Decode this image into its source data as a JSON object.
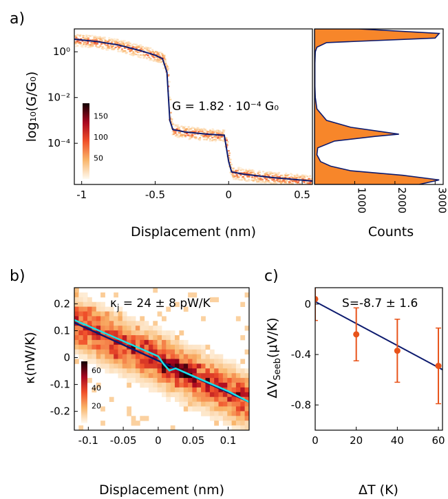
{
  "colors": {
    "navy": "#0c1a6e",
    "cyan": "#19e3e8",
    "orange": "#f7862a",
    "errorbar": "#e8531a",
    "heat_low": "#fde9c8",
    "heat_high": "#1a0006"
  },
  "chart_data": [
    {
      "id": "a",
      "panel_label": "a)",
      "type": "heatmap",
      "xlabel": "Displacement (nm)",
      "ylabel": "log₁₀(G/G₀)",
      "xlim": [
        -1.05,
        0.57
      ],
      "ylim_log10": [
        -5.8,
        1.0
      ],
      "log_y": true,
      "x_ticks": [
        -1,
        -0.5,
        0,
        0.5
      ],
      "x_tick_labels": [
        "-1",
        "-0.5",
        "0",
        "0.5"
      ],
      "y_ticks_log10": [
        0,
        -2,
        -4
      ],
      "y_tick_labels": [
        "10⁰",
        "10⁻²",
        "10⁻⁴"
      ],
      "annotation": "G = 1.82 · 10⁻⁴ G₀",
      "colorbar": {
        "ticks": [
          150,
          100,
          50
        ],
        "range": [
          0,
          180
        ]
      },
      "mean_trace": {
        "x": [
          -1.05,
          -0.9,
          -0.75,
          -0.6,
          -0.5,
          -0.45,
          -0.42,
          -0.4,
          -0.38,
          -0.3,
          -0.15,
          -0.03,
          0.0,
          0.02,
          0.1,
          0.3,
          0.57
        ],
        "log10G": [
          0.55,
          0.45,
          0.3,
          0.05,
          -0.15,
          -0.3,
          -0.9,
          -3.0,
          -3.4,
          -3.5,
          -3.6,
          -3.65,
          -4.8,
          -5.25,
          -5.35,
          -5.5,
          -5.65
        ]
      },
      "plateau_value": 0.000182,
      "grid": false
    },
    {
      "id": "a-hist",
      "type": "bar",
      "orientation": "horizontal",
      "xlabel": "Counts",
      "x_ticks": [
        1000,
        2000,
        3000
      ],
      "x_tick_labels": [
        "1000",
        "2000",
        "3000"
      ],
      "xlim": [
        0,
        3200
      ],
      "ylim_log10": [
        -5.8,
        1.0
      ],
      "histogram": {
        "log10G": [
          1.0,
          0.8,
          0.6,
          0.4,
          0.2,
          0.0,
          -0.5,
          -1.0,
          -1.5,
          -2.0,
          -2.5,
          -3.0,
          -3.3,
          -3.5,
          -3.6,
          -3.7,
          -3.9,
          -4.2,
          -4.5,
          -4.8,
          -5.0,
          -5.2,
          -5.4,
          -5.6,
          -5.8
        ],
        "counts": [
          1100,
          3100,
          3000,
          300,
          60,
          20,
          10,
          10,
          10,
          20,
          60,
          300,
          900,
          1700,
          2100,
          1500,
          500,
          80,
          60,
          150,
          400,
          900,
          2200,
          3100,
          2600
        ]
      },
      "grid": false
    },
    {
      "id": "b",
      "panel_label": "b)",
      "type": "heatmap",
      "xlabel": "Displacement (nm)",
      "ylabel": "κ(nW/K)",
      "xlim": [
        -0.12,
        0.13
      ],
      "ylim": [
        -0.27,
        0.26
      ],
      "x_ticks": [
        -0.1,
        -0.05,
        0,
        0.05,
        0.1
      ],
      "x_tick_labels": [
        "-0.1",
        "-0.05",
        "0",
        "0.05",
        "0.1"
      ],
      "y_ticks": [
        0.2,
        0.1,
        0,
        -0.1,
        -0.2
      ],
      "y_tick_labels": [
        "0.2",
        "0.1",
        "0",
        "-0.1",
        "-0.2"
      ],
      "annotation_prefix": "κ",
      "annotation_sub": "j",
      "annotation_suffix": " = 24 ± 8 pW/K",
      "colorbar": {
        "ticks": [
          60,
          40,
          20
        ],
        "range": [
          0,
          70
        ]
      },
      "fit_line": {
        "x": [
          -0.12,
          0.13
        ],
        "y": [
          0.13,
          -0.165
        ]
      },
      "mean_trace": {
        "x": [
          -0.12,
          -0.08,
          -0.04,
          0.0,
          0.008,
          0.016,
          0.025,
          0.06,
          0.1,
          0.13
        ],
        "y": [
          0.14,
          0.095,
          0.05,
          0.005,
          -0.025,
          -0.048,
          -0.04,
          -0.08,
          -0.125,
          -0.165
        ]
      },
      "grid": false
    },
    {
      "id": "c",
      "panel_label": "c)",
      "type": "scatter",
      "xlabel": "ΔT (K)",
      "ylabel_prefix": "ΔV",
      "ylabel_sub": "Seeb",
      "ylabel_suffix": "(μV/K)",
      "xlim": [
        0,
        62
      ],
      "ylim": [
        -1.0,
        0.13
      ],
      "x_ticks": [
        0,
        20,
        40,
        60
      ],
      "x_tick_labels": [
        "0",
        "20",
        "40",
        "60"
      ],
      "y_ticks": [
        0,
        -0.4,
        -0.8
      ],
      "y_tick_labels": [
        "0",
        "-0.4",
        "-0.8"
      ],
      "annotation": "S=-8.7 ± 1.6",
      "x": [
        0,
        20,
        40,
        60
      ],
      "y": [
        0.04,
        -0.24,
        -0.37,
        -0.49
      ],
      "yerr": [
        0.17,
        0.21,
        0.25,
        0.3
      ],
      "fit_line": {
        "x": [
          0,
          62
        ],
        "y": [
          0.02,
          -0.52
        ]
      },
      "grid": false
    }
  ]
}
